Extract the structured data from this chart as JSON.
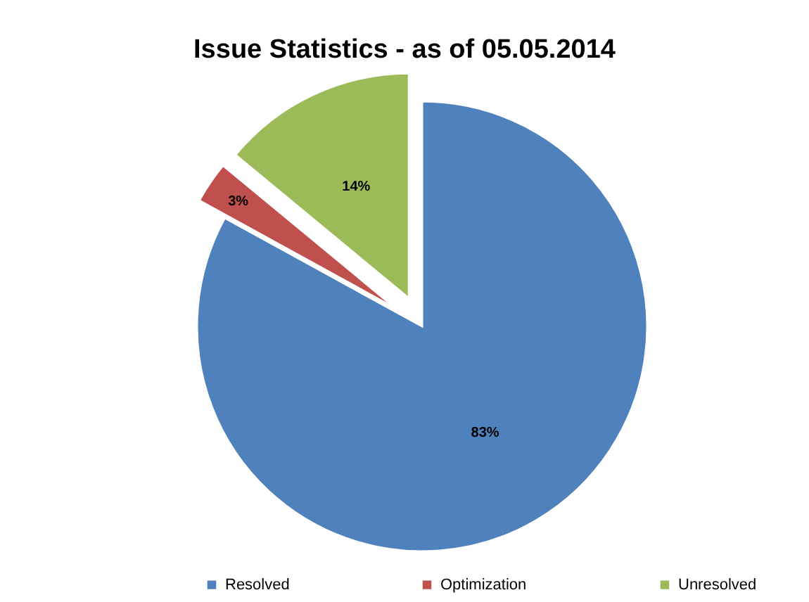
{
  "chart_data": {
    "type": "pie",
    "title": "Issue Statistics - as of 05.05.2014",
    "categories": [
      "Resolved",
      "Optimization",
      "Unresolved"
    ],
    "values": [
      83,
      3,
      14
    ],
    "colors": [
      "#4f81bd",
      "#c0504d",
      "#9bbb59"
    ],
    "value_labels": [
      "83%",
      "3%",
      "14%"
    ],
    "legend": "bottom"
  }
}
